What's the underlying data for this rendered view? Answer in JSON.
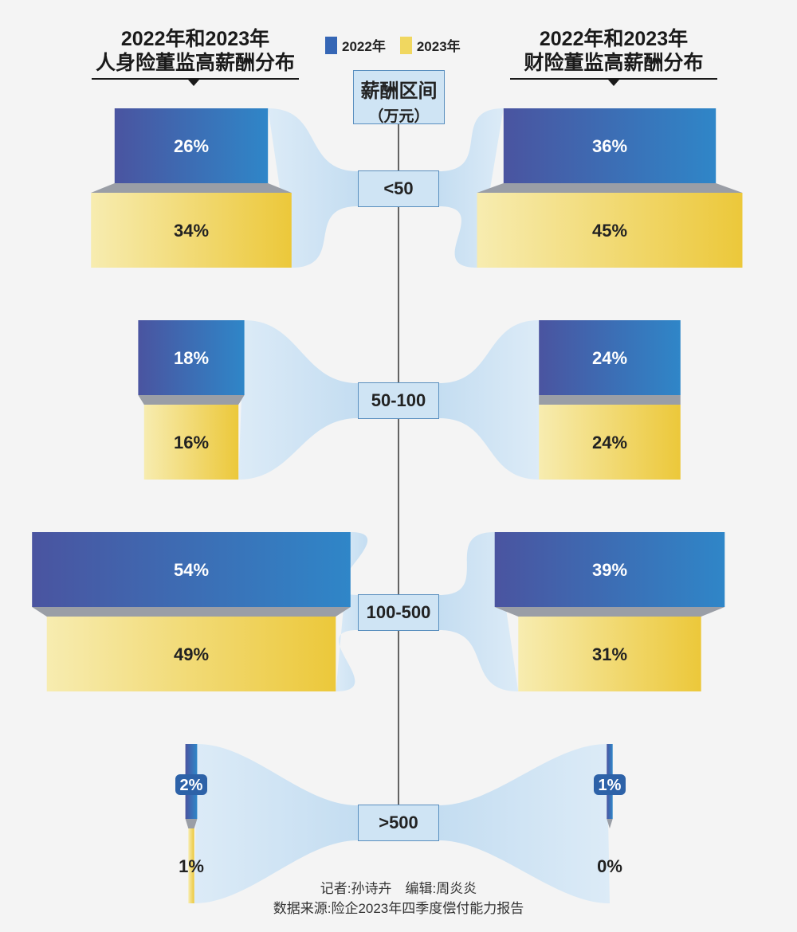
{
  "legend": [
    {
      "label": "2022年",
      "color": "#3566b5"
    },
    {
      "label": "2023年",
      "color": "#f0d760"
    }
  ],
  "titles": {
    "left": {
      "line1": "2022年和2023年",
      "line2": "人身险董监高薪酬分布"
    },
    "right": {
      "line1": "2022年和2023年",
      "line2": "财险董监高薪酬分布"
    }
  },
  "range_header": {
    "line1": "薪酬区间",
    "line2": "（万元）"
  },
  "credits": {
    "line1": "记者:孙诗卉　编辑:周炎炎",
    "line2": "数据来源:险企2023年四季度偿付能力报告"
  },
  "chart_data": [
    {
      "type": "bar",
      "title": "2022年和2023年人身险董监高薪酬分布",
      "categories": [
        "<50",
        "50-100",
        "100-500",
        ">500"
      ],
      "unit": "%",
      "series": [
        {
          "name": "2022年",
          "values": [
            26,
            18,
            54,
            2
          ]
        },
        {
          "name": "2023年",
          "values": [
            34,
            16,
            49,
            1
          ]
        }
      ]
    },
    {
      "type": "bar",
      "title": "2022年和2023年财险董监高薪酬分布",
      "categories": [
        "<50",
        "50-100",
        "100-500",
        ">500"
      ],
      "unit": "%",
      "series": [
        {
          "name": "2022年",
          "values": [
            36,
            24,
            39,
            1
          ]
        },
        {
          "name": "2023年",
          "values": [
            45,
            24,
            31,
            0
          ]
        }
      ]
    }
  ]
}
